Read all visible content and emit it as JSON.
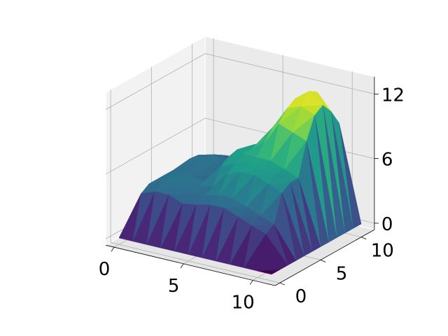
{
  "chart_data": {
    "type": "surface",
    "title": "",
    "xlabel": "",
    "ylabel": "",
    "zlabel": "",
    "x_ticks": [
      0,
      5,
      10
    ],
    "y_ticks": [
      0,
      5,
      10
    ],
    "z_ticks": [
      0,
      6,
      12
    ],
    "x_tick_labels": [
      "0",
      "5",
      "10"
    ],
    "y_tick_labels": [
      "0",
      "5",
      "10"
    ],
    "z_tick_labels": [
      "0",
      "6",
      "12"
    ],
    "xlim": [
      0,
      11
    ],
    "ylim": [
      0,
      11
    ],
    "zlim": [
      0,
      13
    ],
    "grid": true,
    "colormap": "viridis",
    "grid_x": [
      0,
      1,
      2,
      3,
      4,
      5,
      6,
      7,
      8,
      9,
      10,
      11
    ],
    "grid_y": [
      0,
      1,
      2,
      3,
      4,
      5,
      6,
      7,
      8,
      9,
      10,
      11
    ],
    "z": [
      [
        0,
        0,
        0,
        0,
        0,
        0,
        0,
        0,
        0,
        0,
        0,
        0
      ],
      [
        0,
        4.0,
        4.5,
        4.5,
        4.5,
        4.5,
        4.6,
        4.7,
        4.6,
        4.2,
        3.8,
        0
      ],
      [
        0,
        4.5,
        5.0,
        5.0,
        5.0,
        4.8,
        4.9,
        5.0,
        4.9,
        4.5,
        4.0,
        0
      ],
      [
        0,
        4.5,
        5.0,
        5.2,
        5.0,
        4.5,
        5.0,
        5.0,
        4.8,
        4.2,
        3.5,
        0
      ],
      [
        0,
        4.0,
        4.5,
        4.8,
        4.5,
        4.0,
        4.2,
        4.0,
        3.8,
        3.2,
        3.0,
        0
      ],
      [
        0,
        4.2,
        4.6,
        5.0,
        6.5,
        7.0,
        7.2,
        7.0,
        6.8,
        6.5,
        6.0,
        0
      ],
      [
        0,
        4.5,
        5.0,
        6.5,
        7.0,
        7.5,
        7.5,
        7.3,
        7.2,
        7.0,
        6.5,
        0
      ],
      [
        0,
        4.5,
        5.0,
        7.0,
        7.5,
        7.5,
        8.5,
        9.5,
        10.0,
        9.5,
        8.0,
        0
      ],
      [
        0,
        4.0,
        4.5,
        7.0,
        7.2,
        7.5,
        10.5,
        11.5,
        12.0,
        11.5,
        10.0,
        0
      ],
      [
        0,
        3.5,
        4.0,
        6.5,
        7.0,
        7.0,
        10.0,
        12.0,
        13.0,
        12.5,
        10.5,
        0
      ],
      [
        0,
        3.0,
        3.5,
        6.0,
        6.5,
        6.5,
        9.5,
        11.5,
        12.0,
        11.0,
        9.5,
        0
      ],
      [
        0,
        0,
        0,
        0,
        0,
        0,
        0,
        0,
        0,
        0,
        0,
        0
      ]
    ]
  }
}
